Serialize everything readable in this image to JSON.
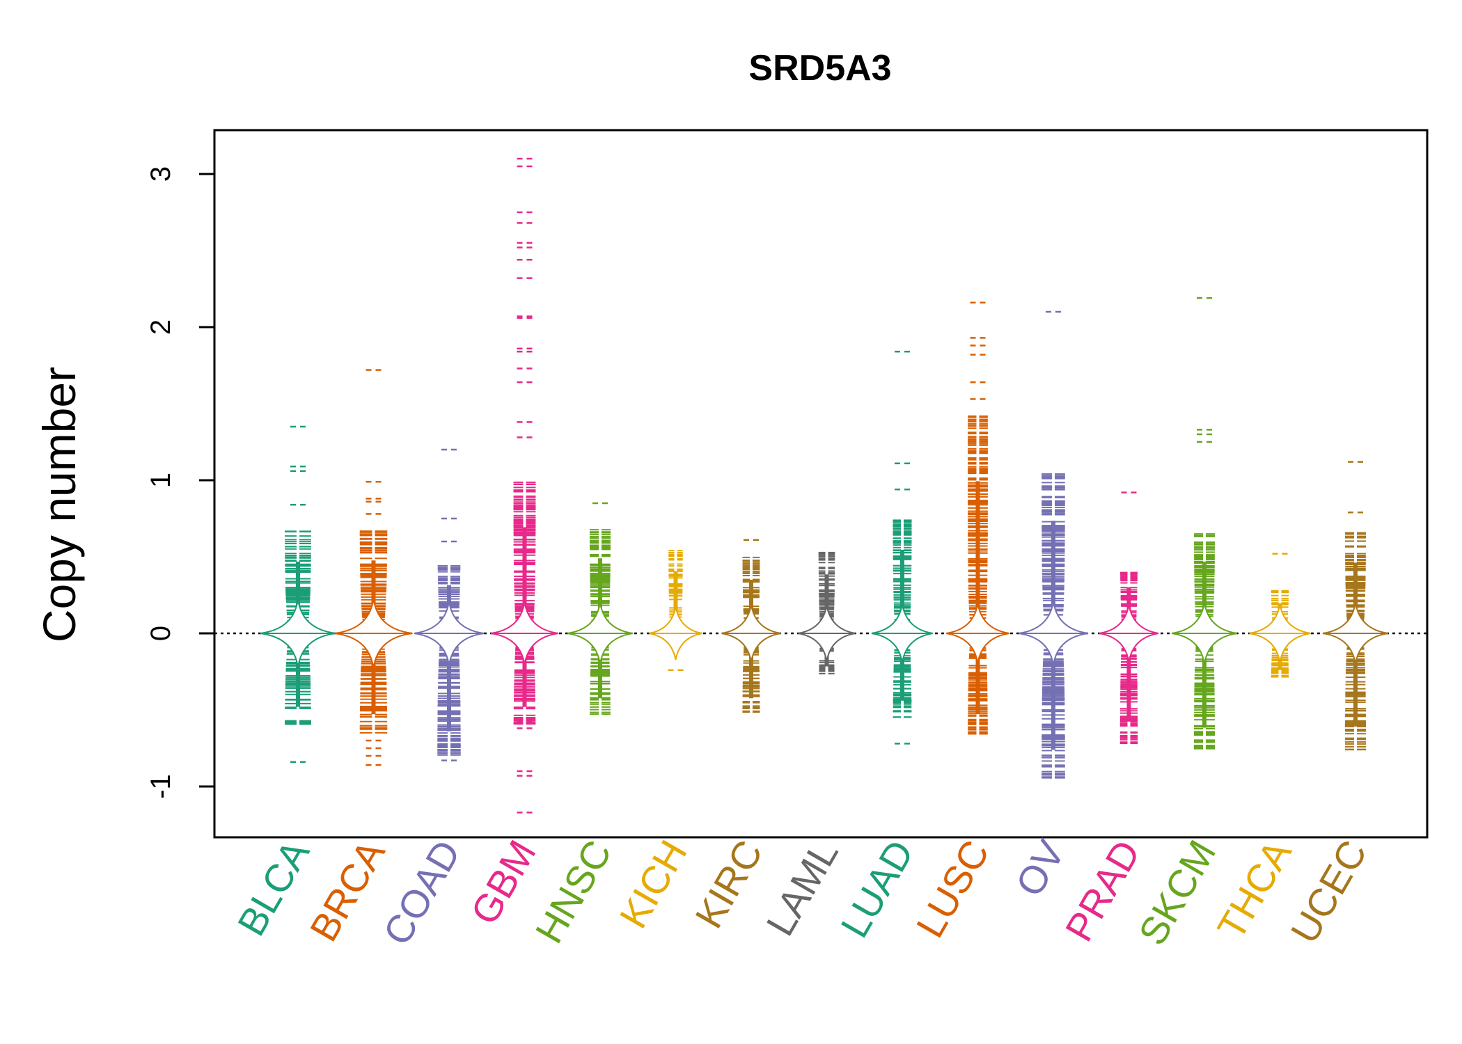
{
  "chart_data": {
    "type": "scatter",
    "title": "SRD5A3",
    "xlabel": "",
    "ylabel": "Copy number",
    "ylim": [
      -1.3,
      3.3
    ],
    "yticks": [
      "-1",
      "0",
      "1",
      "2",
      "3"
    ],
    "reference_line": 0,
    "grid": false,
    "legend": "none",
    "categories": [
      "BLCA",
      "BRCA",
      "COAD",
      "GBM",
      "HNSC",
      "KICH",
      "KIRC",
      "LAML",
      "LUAD",
      "LUSC",
      "OV",
      "PRAD",
      "SKCM",
      "THCA",
      "UCEC"
    ],
    "colors": [
      "#1b9e77",
      "#d95f02",
      "#7570b3",
      "#e7298a",
      "#66a61e",
      "#e6ab02",
      "#a6761d",
      "#666666",
      "#1b9e77",
      "#d95f02",
      "#7570b3",
      "#e7298a",
      "#66a61e",
      "#e6ab02",
      "#a6761d"
    ],
    "series": [
      {
        "category": "BLCA",
        "min": -0.6,
        "max": 0.67,
        "width": 0.95,
        "outliers": [
          1.35,
          1.09,
          1.06,
          0.84,
          -0.84
        ]
      },
      {
        "category": "BRCA",
        "min": -0.66,
        "max": 0.68,
        "width": 1.0,
        "outliers": [
          1.72,
          0.99,
          0.88,
          0.86,
          0.78,
          -0.7,
          -0.75,
          -0.8,
          -0.86
        ]
      },
      {
        "category": "COAD",
        "min": -0.8,
        "max": 0.45,
        "width": 0.8,
        "outliers": [
          1.2,
          0.75,
          0.6,
          -0.83
        ]
      },
      {
        "category": "GBM",
        "min": -0.6,
        "max": 0.99,
        "width": 0.75,
        "outliers": [
          3.1,
          3.05,
          2.75,
          2.68,
          2.55,
          2.52,
          2.44,
          2.32,
          2.07,
          2.06,
          1.86,
          1.84,
          1.73,
          1.64,
          1.38,
          1.28,
          -0.58,
          -0.62,
          -0.9,
          -0.93,
          -1.17
        ]
      },
      {
        "category": "HNSC",
        "min": -0.53,
        "max": 0.7,
        "width": 0.7,
        "outliers": [
          0.85
        ]
      },
      {
        "category": "KICH",
        "min": -0.05,
        "max": 0.58,
        "width": 0.4,
        "outliers": [
          -0.24
        ]
      },
      {
        "category": "KIRC",
        "min": -0.53,
        "max": 0.5,
        "width": 0.55,
        "outliers": [
          0.61
        ]
      },
      {
        "category": "LAML",
        "min": -0.27,
        "max": 0.55,
        "width": 0.5,
        "outliers": []
      },
      {
        "category": "LUAD",
        "min": -0.55,
        "max": 0.78,
        "width": 0.6,
        "outliers": [
          1.84,
          1.11,
          0.94,
          -0.72
        ]
      },
      {
        "category": "LUSC",
        "min": -0.66,
        "max": 1.42,
        "width": 0.65,
        "outliers": [
          2.16,
          1.93,
          1.88,
          1.82,
          1.64,
          1.53
        ]
      },
      {
        "category": "OV",
        "min": -0.95,
        "max": 1.05,
        "width": 0.8,
        "outliers": [
          2.1
        ]
      },
      {
        "category": "PRAD",
        "min": -0.72,
        "max": 0.43,
        "width": 0.55,
        "outliers": [
          0.92
        ]
      },
      {
        "category": "SKCM",
        "min": -0.77,
        "max": 0.67,
        "width": 0.7,
        "outliers": [
          2.19,
          1.33,
          1.3,
          1.25
        ]
      },
      {
        "category": "THCA",
        "min": -0.3,
        "max": 0.28,
        "width": 0.6,
        "outliers": [
          0.52
        ]
      },
      {
        "category": "UCEC",
        "min": -0.76,
        "max": 0.66,
        "width": 0.7,
        "outliers": [
          1.12,
          0.79
        ]
      }
    ]
  }
}
